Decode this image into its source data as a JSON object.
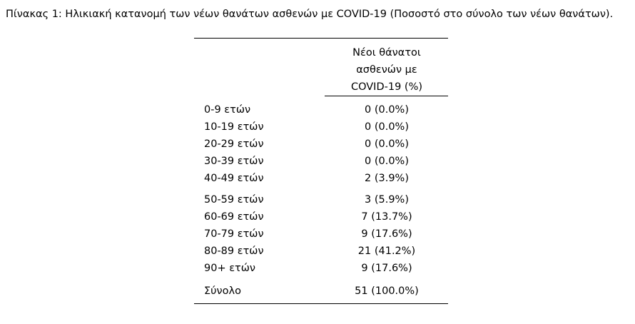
{
  "caption": "Πίνακας 1: Ηλικιακή κατανομή των νέων θανάτων ασθενών με COVID-19 (Ποσοστό στο σύνολο των νέων θανάτων).",
  "table": {
    "header_lines": [
      "Νέοι θάνατοι",
      "ασθενών με",
      "COVID-19 (%)"
    ],
    "rows": [
      {
        "label": "0-9 ετών",
        "value": "0 (0.0%)"
      },
      {
        "label": "10-19 ετών",
        "value": "0 (0.0%)"
      },
      {
        "label": "20-29 ετών",
        "value": "0 (0.0%)"
      },
      {
        "label": "30-39 ετών",
        "value": "0 (0.0%)"
      },
      {
        "label": "40-49 ετών",
        "value": "2 (3.9%)"
      },
      {
        "label": "50-59 ετών",
        "value": "3 (5.9%)"
      },
      {
        "label": "60-69 ετών",
        "value": "7 (13.7%)"
      },
      {
        "label": "70-79 ετών",
        "value": "9 (17.6%)"
      },
      {
        "label": "80-89 ετών",
        "value": "21 (41.2%)"
      },
      {
        "label": "90+ ετών",
        "value": "9 (17.6%)"
      }
    ],
    "total": {
      "label": "Σύνολο",
      "value": "51 (100.0%)"
    }
  }
}
